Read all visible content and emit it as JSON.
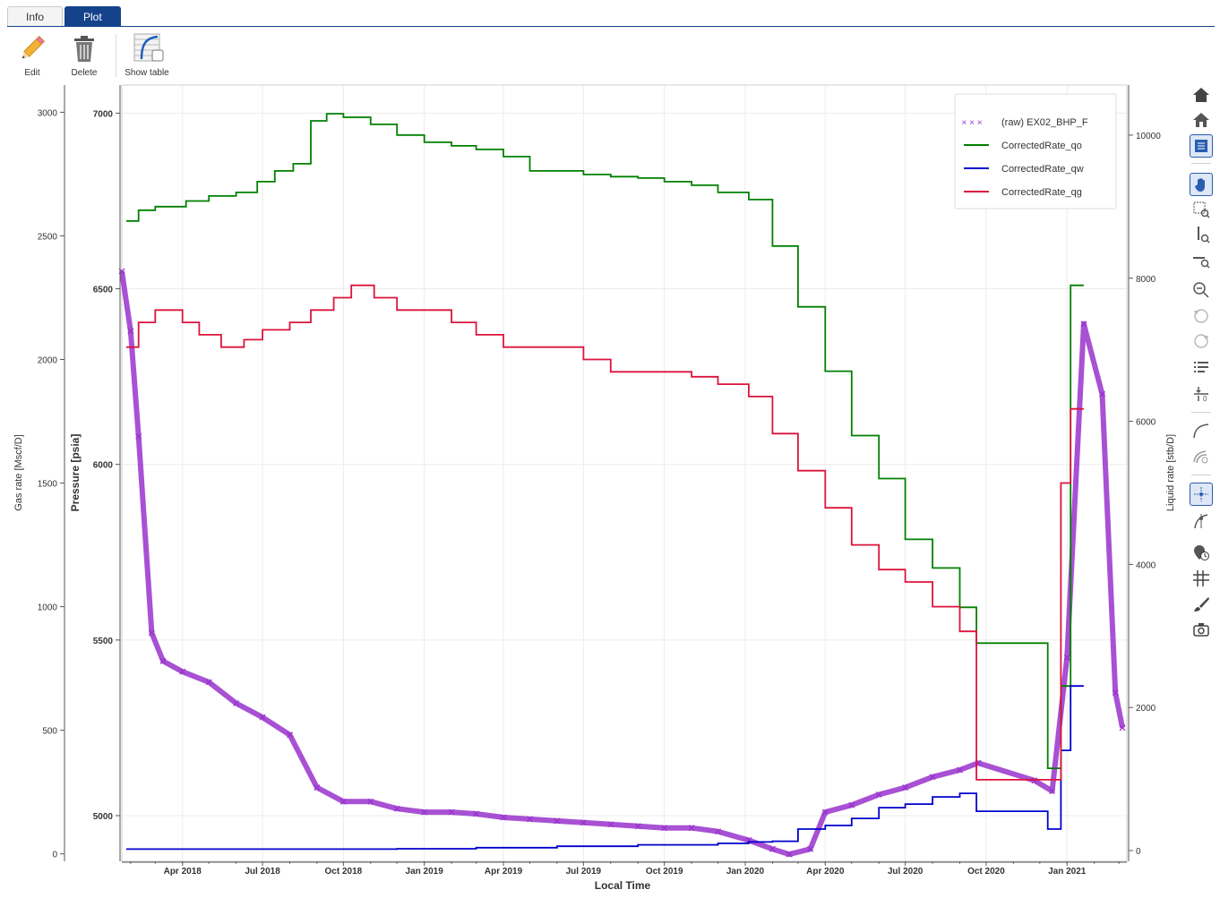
{
  "tabs": [
    {
      "label": "Info",
      "active": false
    },
    {
      "label": "Plot",
      "active": true
    }
  ],
  "toolbar": {
    "edit": "Edit",
    "delete": "Delete",
    "show_table": "Show table"
  },
  "sidebar": [
    "home-icon",
    "reset-home-icon",
    "legend-toggle-icon",
    "pan-hand-icon",
    "box-zoom-icon",
    "y-zoom-icon",
    "x-zoom-icon",
    "zoom-out-icon",
    "undo-icon",
    "redo-icon",
    "filter-list-icon",
    "align-icon",
    "curve-fit-icon",
    "curve-select-icon",
    "crosshair-icon",
    "pick-point-icon",
    "time-marker-icon",
    "grid-icon",
    "brush-icon",
    "camera-icon"
  ],
  "colors": {
    "qo": "#008000",
    "qw": "#0000cd",
    "qg": "#dc143c",
    "bhp": "#9932cc",
    "tab_active": "#14438c"
  },
  "chart_data": {
    "type": "line",
    "xlabel": "Local Time",
    "x_ticks": [
      "Apr 2018",
      "Jul 2018",
      "Oct 2018",
      "Jan 2019",
      "Apr 2019",
      "Jul 2019",
      "Oct 2019",
      "Jan 2020",
      "Apr 2020",
      "Jul 2020",
      "Oct 2020",
      "Jan 2021"
    ],
    "xlim": [
      "2018-01-22",
      "2021-03-10"
    ],
    "axes": {
      "gas": {
        "label": "Gas rate [Mscf/D]",
        "ylim": [
          -30,
          3110
        ],
        "ticks": [
          0,
          500,
          1000,
          1500,
          2000,
          2500,
          3000
        ]
      },
      "pressure": {
        "label": "Pressure [psia]",
        "ylim": [
          4870,
          7080
        ],
        "ticks": [
          5000,
          5500,
          6000,
          6500,
          7000
        ]
      },
      "liquid": {
        "label": "Liquid rate [stb/D]",
        "ylim": [
          -150,
          10700
        ],
        "ticks": [
          0,
          2000,
          4000,
          6000,
          8000,
          10000
        ]
      }
    },
    "legend": {
      "placement": "top-right",
      "entries": [
        "(raw) EX02_BHP_F",
        "CorrectedRate_qo",
        "CorrectedRate_qw",
        "CorrectedRate_qg"
      ]
    },
    "series": [
      {
        "name": "CorrectedRate_qo",
        "axis": "liquid",
        "style": "step",
        "x": [
          "2018-01-27",
          "2018-02-10",
          "2018-03-01",
          "2018-04-05",
          "2018-05-01",
          "2018-06-01",
          "2018-06-25",
          "2018-07-15",
          "2018-08-05",
          "2018-08-25",
          "2018-09-12",
          "2018-10-01",
          "2018-11-01",
          "2018-12-01",
          "2019-01-01",
          "2019-02-01",
          "2019-03-01",
          "2019-04-01",
          "2019-05-01",
          "2019-06-01",
          "2019-07-01",
          "2019-08-01",
          "2019-09-01",
          "2019-10-01",
          "2019-11-01",
          "2019-12-01",
          "2020-01-05",
          "2020-02-01",
          "2020-03-01",
          "2020-04-01",
          "2020-05-01",
          "2020-06-01",
          "2020-07-01",
          "2020-08-01",
          "2020-09-01",
          "2020-09-20",
          "2020-12-10",
          "2020-12-25",
          "2021-01-05"
        ],
        "values": [
          8800,
          8950,
          9000,
          9080,
          9150,
          9200,
          9350,
          9500,
          9600,
          10200,
          10300,
          10250,
          10150,
          10000,
          9900,
          9850,
          9800,
          9700,
          9500,
          9500,
          9450,
          9420,
          9400,
          9350,
          9300,
          9200,
          9100,
          8450,
          7600,
          6700,
          5800,
          5200,
          4350,
          3950,
          3400,
          2900,
          1150,
          2300,
          7900
        ]
      },
      {
        "name": "CorrectedRate_qw",
        "axis": "liquid",
        "style": "step",
        "x": [
          "2018-01-27",
          "2018-03-01",
          "2018-06-01",
          "2018-09-01",
          "2018-12-01",
          "2019-03-01",
          "2019-06-01",
          "2019-09-01",
          "2019-12-01",
          "2020-01-05",
          "2020-02-01",
          "2020-03-01",
          "2020-04-01",
          "2020-05-01",
          "2020-06-01",
          "2020-07-01",
          "2020-08-01",
          "2020-09-01",
          "2020-09-20",
          "2020-12-10",
          "2020-12-25",
          "2021-01-05"
        ],
        "values": [
          20,
          20,
          20,
          20,
          25,
          40,
          60,
          80,
          100,
          120,
          130,
          300,
          350,
          450,
          600,
          650,
          750,
          800,
          550,
          300,
          1400,
          2300
        ]
      },
      {
        "name": "CorrectedRate_qg",
        "axis": "gas",
        "style": "step",
        "x": [
          "2018-01-27",
          "2018-02-10",
          "2018-03-01",
          "2018-04-01",
          "2018-04-20",
          "2018-05-15",
          "2018-06-10",
          "2018-07-01",
          "2018-08-01",
          "2018-08-25",
          "2018-09-20",
          "2018-10-10",
          "2018-11-05",
          "2018-12-01",
          "2019-01-01",
          "2019-02-01",
          "2019-03-01",
          "2019-04-01",
          "2019-05-01",
          "2019-06-01",
          "2019-07-01",
          "2019-08-01",
          "2019-09-01",
          "2019-10-01",
          "2019-11-01",
          "2019-12-01",
          "2020-01-05",
          "2020-02-01",
          "2020-03-01",
          "2020-04-01",
          "2020-05-01",
          "2020-06-01",
          "2020-07-01",
          "2020-08-01",
          "2020-09-01",
          "2020-09-20",
          "2020-12-10",
          "2020-12-25",
          "2021-01-05"
        ],
        "values": [
          2050,
          2150,
          2200,
          2150,
          2100,
          2050,
          2080,
          2120,
          2150,
          2200,
          2250,
          2300,
          2250,
          2200,
          2200,
          2150,
          2100,
          2050,
          2050,
          2050,
          2000,
          1950,
          1950,
          1950,
          1930,
          1900,
          1850,
          1700,
          1550,
          1400,
          1250,
          1150,
          1100,
          1000,
          900,
          300,
          300,
          1500,
          1800
        ]
      },
      {
        "name": "(raw) EX02_BHP_F",
        "axis": "pressure",
        "style": "scatter",
        "x": [
          "2018-01-22",
          "2018-02-01",
          "2018-02-10",
          "2018-02-25",
          "2018-03-10",
          "2018-04-01",
          "2018-05-01",
          "2018-06-01",
          "2018-07-01",
          "2018-08-01",
          "2018-09-01",
          "2018-10-01",
          "2018-11-01",
          "2018-12-01",
          "2019-01-01",
          "2019-02-01",
          "2019-03-01",
          "2019-04-01",
          "2019-05-01",
          "2019-06-01",
          "2019-07-01",
          "2019-08-01",
          "2019-09-01",
          "2019-10-01",
          "2019-11-01",
          "2019-12-01",
          "2020-01-05",
          "2020-02-01",
          "2020-02-20",
          "2020-03-15",
          "2020-04-01",
          "2020-05-01",
          "2020-06-01",
          "2020-07-01",
          "2020-08-01",
          "2020-09-01",
          "2020-09-22",
          "2020-11-25",
          "2020-12-15",
          "2021-01-01",
          "2021-01-20",
          "2021-02-10",
          "2021-02-25",
          "2021-03-05"
        ],
        "values": [
          6550,
          6380,
          6080,
          5520,
          5440,
          5410,
          5380,
          5320,
          5280,
          5230,
          5080,
          5040,
          5040,
          5020,
          5010,
          5010,
          5005,
          4995,
          4990,
          4985,
          4980,
          4975,
          4970,
          4965,
          4965,
          4955,
          4930,
          4905,
          4890,
          4905,
          5010,
          5030,
          5060,
          5080,
          5110,
          5130,
          5150,
          5100,
          5070,
          5450,
          6400,
          6200,
          5350,
          5250
        ]
      }
    ]
  }
}
